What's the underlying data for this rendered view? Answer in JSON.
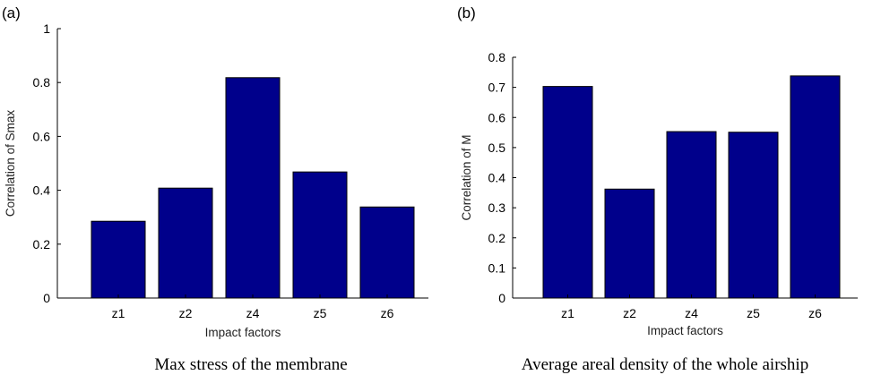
{
  "chart_data": [
    {
      "type": "bar",
      "panel_label": "(a)",
      "categories": [
        "z1",
        "z2",
        "z4",
        "z5",
        "z6"
      ],
      "values": [
        0.285,
        0.408,
        0.818,
        0.468,
        0.338
      ],
      "xlabel": "Impact factors",
      "ylabel": "Correlation of Smax",
      "ylim": [
        0,
        1
      ],
      "yticks": [
        0,
        0.2,
        0.4,
        0.6,
        0.8,
        1
      ],
      "ytick_labels": [
        "0",
        "0.2",
        "0.4",
        "0.6",
        "0.8",
        "1"
      ],
      "caption": "Max stress of the membrane",
      "bar_color": "#00008b"
    },
    {
      "type": "bar",
      "panel_label": "(b)",
      "categories": [
        "z1",
        "z2",
        "z4",
        "z5",
        "z6"
      ],
      "values": [
        0.703,
        0.362,
        0.553,
        0.551,
        0.738
      ],
      "xlabel": "Impact factors",
      "ylabel": "Correlation of M",
      "ylim": [
        0,
        0.8
      ],
      "yticks": [
        0,
        0.1,
        0.2,
        0.3,
        0.4,
        0.5,
        0.6,
        0.7,
        0.8
      ],
      "ytick_labels": [
        "0",
        "0.1",
        "0.2",
        "0.3",
        "0.4",
        "0.5",
        "0.6",
        "0.7",
        "0.8"
      ],
      "caption": "Average areal density of the whole airship",
      "bar_color": "#00008b"
    }
  ]
}
